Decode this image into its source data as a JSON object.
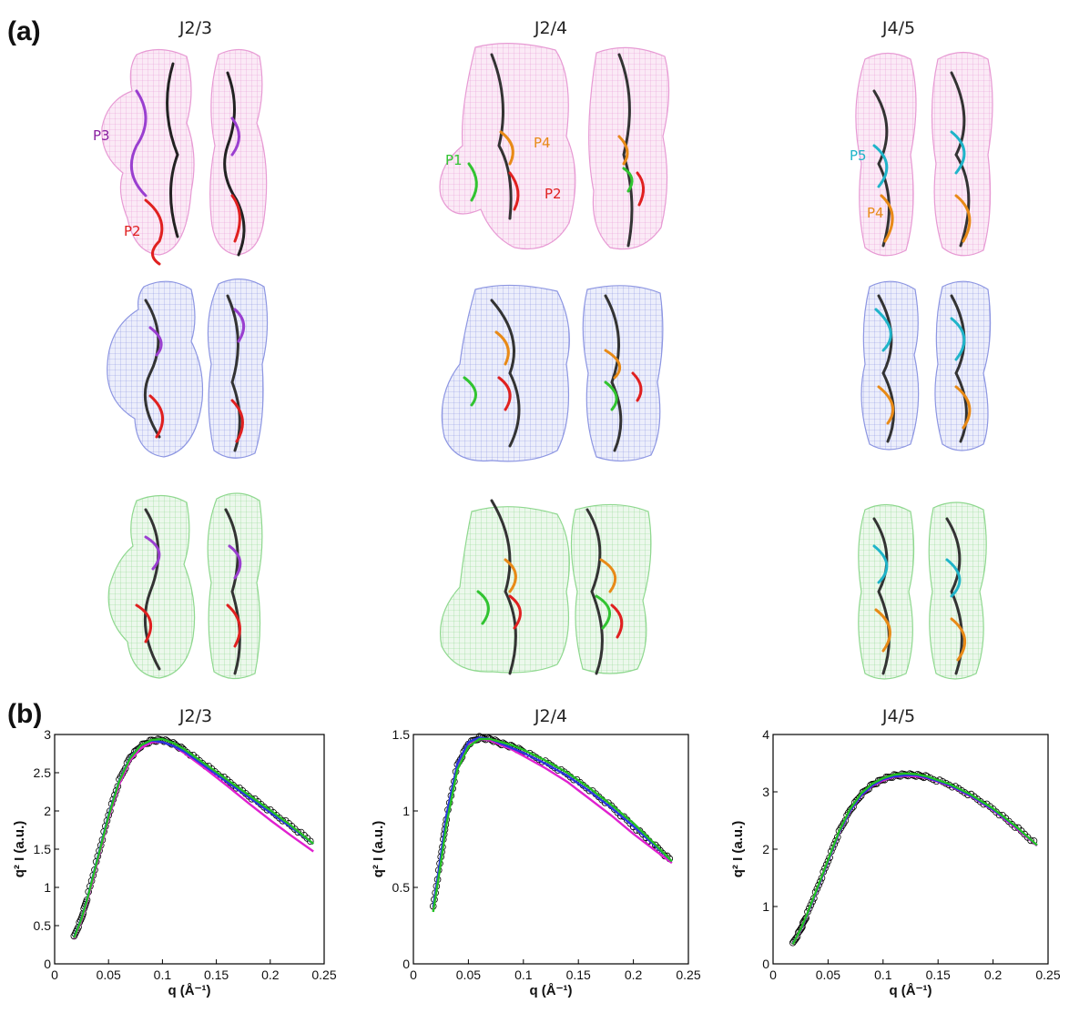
{
  "panel_a": {
    "label": "(a)",
    "columns": [
      {
        "title": "J2/3",
        "domains": [
          {
            "text": "P3",
            "color": "#8a1fa0"
          },
          {
            "text": "P2",
            "color": "#e02020"
          }
        ]
      },
      {
        "title": "J2/4",
        "domains": [
          {
            "text": "P4",
            "color": "#e88a17"
          },
          {
            "text": "P1",
            "color": "#31c431"
          },
          {
            "text": "P2",
            "color": "#e02020"
          }
        ]
      },
      {
        "title": "J4/5",
        "domains": [
          {
            "text": "P5",
            "color": "#1fb4c9"
          },
          {
            "text": "P4",
            "color": "#e88a17"
          }
        ]
      }
    ],
    "envelope_colors": [
      "#e79ad4",
      "#8d96e2",
      "#8fd88f"
    ]
  },
  "panel_b": {
    "label": "(b)",
    "titles": [
      "J2/3",
      "J2/4",
      "J4/5"
    ]
  },
  "chart_data": [
    {
      "type": "line",
      "title": "J2/3",
      "xlabel": "q (Å⁻¹)",
      "ylabel": "q² I (a.u.)",
      "xlim": [
        0,
        0.25
      ],
      "ylim": [
        0,
        3
      ],
      "xticks": [
        "0",
        "0.05",
        "0.1",
        "0.15",
        "0.2",
        "0.25"
      ],
      "yticks": [
        "0",
        "0.5",
        "1",
        "1.5",
        "2",
        "2.5",
        "3"
      ],
      "x": [
        0.018,
        0.025,
        0.03,
        0.04,
        0.05,
        0.06,
        0.07,
        0.08,
        0.09,
        0.1,
        0.11,
        0.12,
        0.14,
        0.16,
        0.18,
        0.2,
        0.22,
        0.24
      ],
      "series": [
        {
          "color": "#000000",
          "values": [
            0.35,
            0.6,
            0.85,
            1.4,
            1.95,
            2.4,
            2.7,
            2.85,
            2.92,
            2.93,
            2.88,
            2.8,
            2.6,
            2.4,
            2.2,
            2.0,
            1.8,
            1.58
          ]
        },
        {
          "color": "#e020d0",
          "values": [
            0.33,
            0.57,
            0.8,
            1.35,
            1.9,
            2.35,
            2.66,
            2.82,
            2.9,
            2.9,
            2.85,
            2.76,
            2.55,
            2.33,
            2.1,
            1.88,
            1.67,
            1.47
          ]
        },
        {
          "color": "#2a35e0",
          "values": [
            0.35,
            0.6,
            0.84,
            1.4,
            1.95,
            2.4,
            2.7,
            2.86,
            2.92,
            2.9,
            2.85,
            2.78,
            2.58,
            2.38,
            2.18,
            1.98,
            1.78,
            1.57
          ]
        },
        {
          "color": "#24c024",
          "values": [
            0.34,
            0.59,
            0.83,
            1.38,
            1.93,
            2.39,
            2.69,
            2.86,
            2.93,
            2.94,
            2.89,
            2.81,
            2.61,
            2.41,
            2.21,
            2.01,
            1.8,
            1.57
          ]
        }
      ]
    },
    {
      "type": "line",
      "title": "J2/4",
      "xlabel": "q (Å⁻¹)",
      "ylabel": "q² I (a.u.)",
      "xlim": [
        0,
        0.25
      ],
      "ylim": [
        0,
        1.5
      ],
      "xticks": [
        "0",
        "0.05",
        "0.1",
        "0.15",
        "0.2",
        "0.25"
      ],
      "yticks": [
        "0",
        "0.5",
        "1",
        "1.5"
      ],
      "x": [
        0.018,
        0.025,
        0.03,
        0.04,
        0.05,
        0.06,
        0.07,
        0.08,
        0.09,
        0.1,
        0.12,
        0.14,
        0.16,
        0.18,
        0.2,
        0.22,
        0.235
      ],
      "series": [
        {
          "color": "#000000",
          "values": [
            0.37,
            0.7,
            0.95,
            1.3,
            1.44,
            1.48,
            1.47,
            1.44,
            1.42,
            1.39,
            1.32,
            1.24,
            1.14,
            1.03,
            0.9,
            0.77,
            0.67
          ]
        },
        {
          "color": "#e020d0",
          "values": [
            0.36,
            0.68,
            0.93,
            1.28,
            1.43,
            1.47,
            1.46,
            1.43,
            1.4,
            1.36,
            1.28,
            1.19,
            1.08,
            0.97,
            0.85,
            0.74,
            0.66
          ]
        },
        {
          "color": "#2a35e0",
          "values": [
            0.37,
            0.71,
            0.97,
            1.31,
            1.45,
            1.48,
            1.47,
            1.44,
            1.41,
            1.38,
            1.31,
            1.23,
            1.13,
            1.02,
            0.9,
            0.77,
            0.67
          ]
        },
        {
          "color": "#24c024",
          "values": [
            0.34,
            0.66,
            0.91,
            1.27,
            1.42,
            1.47,
            1.47,
            1.45,
            1.43,
            1.4,
            1.33,
            1.25,
            1.15,
            1.04,
            0.92,
            0.78,
            0.67
          ]
        }
      ]
    },
    {
      "type": "line",
      "title": "J4/5",
      "xlabel": "q (Å⁻¹)",
      "ylabel": "q² I (a.u.)",
      "xlim": [
        0,
        0.25
      ],
      "ylim": [
        0,
        4
      ],
      "xticks": [
        "0",
        "0.05",
        "0.1",
        "0.15",
        "0.2",
        "0.25"
      ],
      "yticks": [
        "0",
        "1",
        "2",
        "3",
        "4"
      ],
      "x": [
        0.018,
        0.025,
        0.03,
        0.04,
        0.05,
        0.06,
        0.07,
        0.08,
        0.09,
        0.1,
        0.11,
        0.12,
        0.13,
        0.14,
        0.16,
        0.18,
        0.2,
        0.22,
        0.24
      ],
      "series": [
        {
          "color": "#000000",
          "values": [
            0.35,
            0.6,
            0.82,
            1.3,
            1.8,
            2.3,
            2.68,
            2.95,
            3.12,
            3.22,
            3.28,
            3.3,
            3.29,
            3.26,
            3.13,
            2.94,
            2.7,
            2.4,
            2.08
          ]
        },
        {
          "color": "#e020d0",
          "values": [
            0.34,
            0.58,
            0.8,
            1.28,
            1.78,
            2.28,
            2.66,
            2.93,
            3.1,
            3.2,
            3.26,
            3.28,
            3.27,
            3.24,
            3.11,
            2.92,
            2.68,
            2.38,
            2.06
          ]
        },
        {
          "color": "#2a35e0",
          "values": [
            0.35,
            0.59,
            0.81,
            1.29,
            1.79,
            2.29,
            2.67,
            2.94,
            3.11,
            3.22,
            3.27,
            3.29,
            3.29,
            3.25,
            3.12,
            2.93,
            2.69,
            2.4,
            2.07
          ]
        },
        {
          "color": "#24c024",
          "values": [
            0.34,
            0.6,
            0.82,
            1.31,
            1.81,
            2.31,
            2.7,
            2.97,
            3.14,
            3.24,
            3.3,
            3.32,
            3.31,
            3.27,
            3.14,
            2.95,
            2.71,
            2.41,
            2.07
          ]
        }
      ]
    }
  ]
}
